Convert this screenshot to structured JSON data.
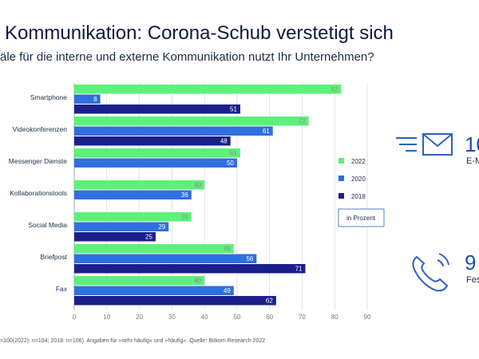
{
  "header": {
    "title": "Kommunikation: Corona-Schub verstetigt sich",
    "subtitle": "äle für die interne und externe Kommunikation nutzt Ihr Unternehmen?"
  },
  "chart_data": {
    "type": "bar",
    "orientation": "horizontal",
    "categories": [
      "Smartphone",
      "Videokonferenzen",
      "Messenger Dienste",
      "Kollaborationstools",
      "Social Media",
      "Briefpost",
      "Fax"
    ],
    "series": [
      {
        "name": "2022",
        "color": "#5ef07a",
        "labelColor": "#8a8a8a",
        "values": [
          82,
          72,
          51,
          40,
          36,
          49,
          40
        ]
      },
      {
        "name": "2020",
        "color": "#2f6fe0",
        "labelColor": "#ffffff",
        "values": [
          8,
          61,
          50,
          36,
          29,
          56,
          49
        ]
      },
      {
        "name": "2018",
        "color": "#1a1f8c",
        "labelColor": "#ffffff",
        "values": [
          51,
          48,
          null,
          null,
          25,
          71,
          62
        ]
      }
    ],
    "xlim": [
      0,
      90
    ],
    "xticks": [
      0,
      10,
      20,
      30,
      40,
      50,
      60,
      70,
      80,
      90
    ],
    "unit_note": "in Prozent",
    "legend_position": "right"
  },
  "side": {
    "stat1_number": "10",
    "stat1_label": "E-M",
    "stat2_number": "9",
    "stat2_label": "Fes"
  },
  "footnote": "=100(2022); n=104; 2018: n=106). Angaben für »sehr häufig« und »häufig«. Quelle: Bitkom Research 2022"
}
